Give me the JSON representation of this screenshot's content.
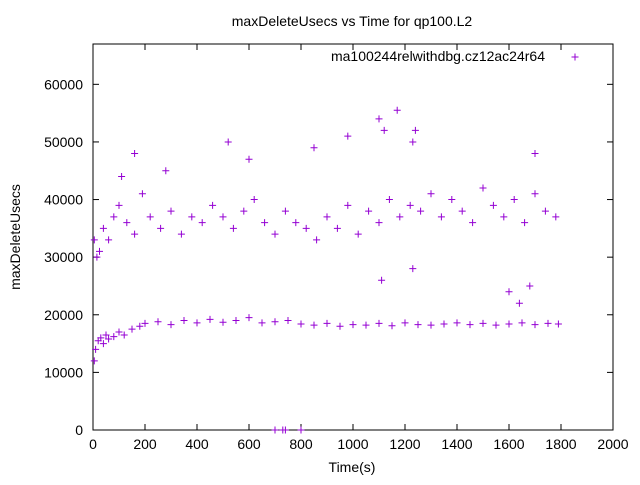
{
  "chart_data": {
    "type": "scatter",
    "title": "maxDeleteUsecs vs Time for qp100.L2",
    "xlabel": "Time(s)",
    "ylabel": "maxDeleteUsecs",
    "xlim": [
      0,
      2000
    ],
    "ylim": [
      0,
      67000
    ],
    "x_ticks": [
      0,
      200,
      400,
      600,
      800,
      1000,
      1200,
      1400,
      1600,
      1800,
      2000
    ],
    "x_tick_labels": [
      "0",
      "200",
      "400",
      "600",
      "800",
      "1000",
      "1200",
      "1400",
      "1600",
      "1800",
      "2000"
    ],
    "y_ticks": [
      0,
      10000,
      20000,
      30000,
      40000,
      50000,
      60000
    ],
    "y_tick_labels": [
      "0",
      "10000",
      "20000",
      "30000",
      "40000",
      "50000",
      "60000"
    ],
    "grid": false,
    "legend_position": "top-right",
    "series": [
      {
        "name": "ma100244relwithdbg.cz12ac24r64",
        "color": "#9400d3",
        "marker": "plus",
        "x": [
          5,
          10,
          20,
          30,
          40,
          50,
          60,
          80,
          100,
          120,
          150,
          180,
          200,
          250,
          300,
          350,
          400,
          450,
          500,
          550,
          600,
          650,
          700,
          750,
          800,
          850,
          900,
          950,
          1000,
          1050,
          1100,
          1150,
          1200,
          1250,
          1300,
          1350,
          1400,
          1450,
          1500,
          1550,
          1600,
          1650,
          1700,
          1750,
          1790,
          5,
          15,
          25,
          40,
          60,
          80,
          100,
          130,
          160,
          190,
          220,
          260,
          300,
          340,
          380,
          420,
          460,
          500,
          540,
          580,
          620,
          660,
          700,
          740,
          780,
          820,
          860,
          900,
          940,
          980,
          1020,
          1060,
          1100,
          1140,
          1180,
          1220,
          1260,
          1300,
          1340,
          1380,
          1420,
          1460,
          1500,
          1540,
          1580,
          1620,
          1660,
          1700,
          1740,
          1780,
          110,
          160,
          280,
          520,
          600,
          850,
          980,
          1100,
          1120,
          1170,
          1230,
          1240,
          1700,
          700,
          730,
          740,
          800,
          1600,
          1640,
          1680,
          1110,
          1230
        ],
        "y": [
          12000,
          14000,
          15500,
          16000,
          15000,
          16500,
          15800,
          16200,
          17000,
          16500,
          17500,
          18000,
          18500,
          18800,
          18300,
          19000,
          18600,
          19200,
          18700,
          19000,
          19500,
          18600,
          18800,
          19000,
          18400,
          18200,
          18500,
          18000,
          18300,
          18200,
          18500,
          18100,
          18600,
          18300,
          18200,
          18400,
          18600,
          18300,
          18500,
          18200,
          18400,
          18600,
          18300,
          18500,
          18400,
          33000,
          30000,
          31000,
          35000,
          33000,
          37000,
          39000,
          36000,
          34000,
          41000,
          37000,
          35000,
          38000,
          34000,
          37000,
          36000,
          39000,
          37000,
          35000,
          38000,
          40000,
          36000,
          34000,
          38000,
          36000,
          35000,
          33000,
          37000,
          35000,
          39000,
          34000,
          38000,
          36000,
          40000,
          37000,
          39000,
          38000,
          41000,
          37000,
          40000,
          38000,
          36000,
          42000,
          39000,
          37000,
          40000,
          36000,
          41000,
          38000,
          37000,
          44000,
          48000,
          45000,
          50000,
          47000,
          49000,
          51000,
          54000,
          52000,
          55500,
          50000,
          52000,
          48000,
          0,
          0,
          0,
          0,
          24000,
          22000,
          25000,
          26000,
          28000
        ]
      }
    ]
  }
}
